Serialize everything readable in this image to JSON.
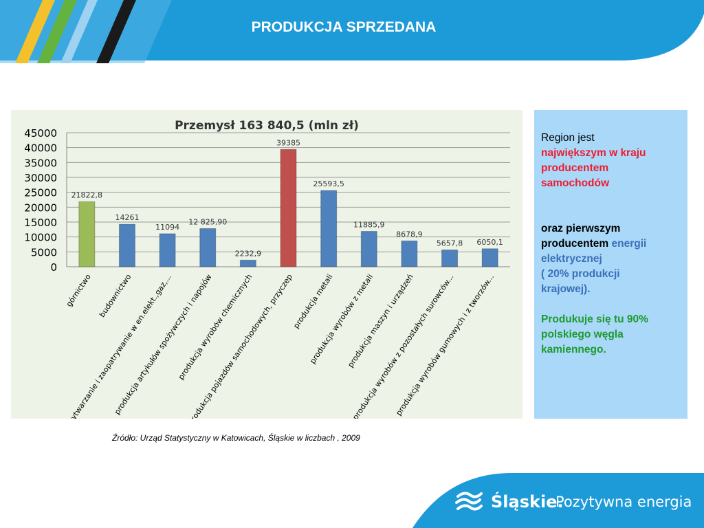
{
  "slide": {
    "title": "PRODUKCJA SPRZEDANA",
    "source": "Źródło: Urząd Statystyczny w Katowicach, Śląskie w liczbach , 2009"
  },
  "sidebar": {
    "l1": "Region jest",
    "l2": "największym w kraju",
    "l3": "producentem",
    "l4": "samochodów",
    "l5": "oraz pierwszym",
    "l6a": "producentem",
    "l6b": "energii",
    "l7": "elektrycznej",
    "l8": "( 20% produkcji",
    "l9": "krajowej).",
    "l10": "Produkuje się tu 90%",
    "l11": "polskiego węgla",
    "l12": "kamiennego."
  },
  "brand": {
    "name": "Śląskie.",
    "slogan": "Pozytywna energia"
  },
  "colors": {
    "header_blue": "#1d9ad8",
    "bar_default": "#4f81bd",
    "bar_green": "#9bbb59",
    "bar_red": "#c0504d"
  },
  "chart_data": {
    "type": "bar",
    "title": "Przemysł 163 840,5 (mln zł)",
    "xlabel": "",
    "ylabel": "",
    "ylim": [
      0,
      45000
    ],
    "yticks": [
      "0",
      "5000",
      "10000",
      "15000",
      "20000",
      "25000",
      "30000",
      "35000",
      "40000",
      "45000"
    ],
    "grid": true,
    "legend": "none",
    "categories": [
      "górnictwo",
      "budownictwo",
      "wytwarzanie i zaopatrywanie w en.elekt.,gaz,...",
      "produkcja artykułów spożywczych i napojów",
      "produkcja wyrobów chemicznych",
      "produkcja pojazdów samochodowych, przyczep",
      "produkcja metali",
      "produkcja wyrobów z metali",
      "produkcja maszyn i urządzeń",
      "produkcja wyrobów z pozostałych surowców...",
      "produkcja wyrobów gumowych i z tworzów..."
    ],
    "values": [
      21822.8,
      14261,
      11094,
      12825.9,
      2232.9,
      39385,
      25593.5,
      11885.9,
      8678.9,
      5657.8,
      6050.1
    ],
    "labels": [
      "21822,8",
      "14261",
      "11094",
      "12 825,90",
      "2232,9",
      "39385",
      "25593,5",
      "11885,9",
      "8678,9",
      "5657,8",
      "6050,1"
    ],
    "bar_colors": [
      "#9bbb59",
      "#4f81bd",
      "#4f81bd",
      "#4f81bd",
      "#4f81bd",
      "#c0504d",
      "#4f81bd",
      "#4f81bd",
      "#4f81bd",
      "#4f81bd",
      "#4f81bd"
    ]
  }
}
